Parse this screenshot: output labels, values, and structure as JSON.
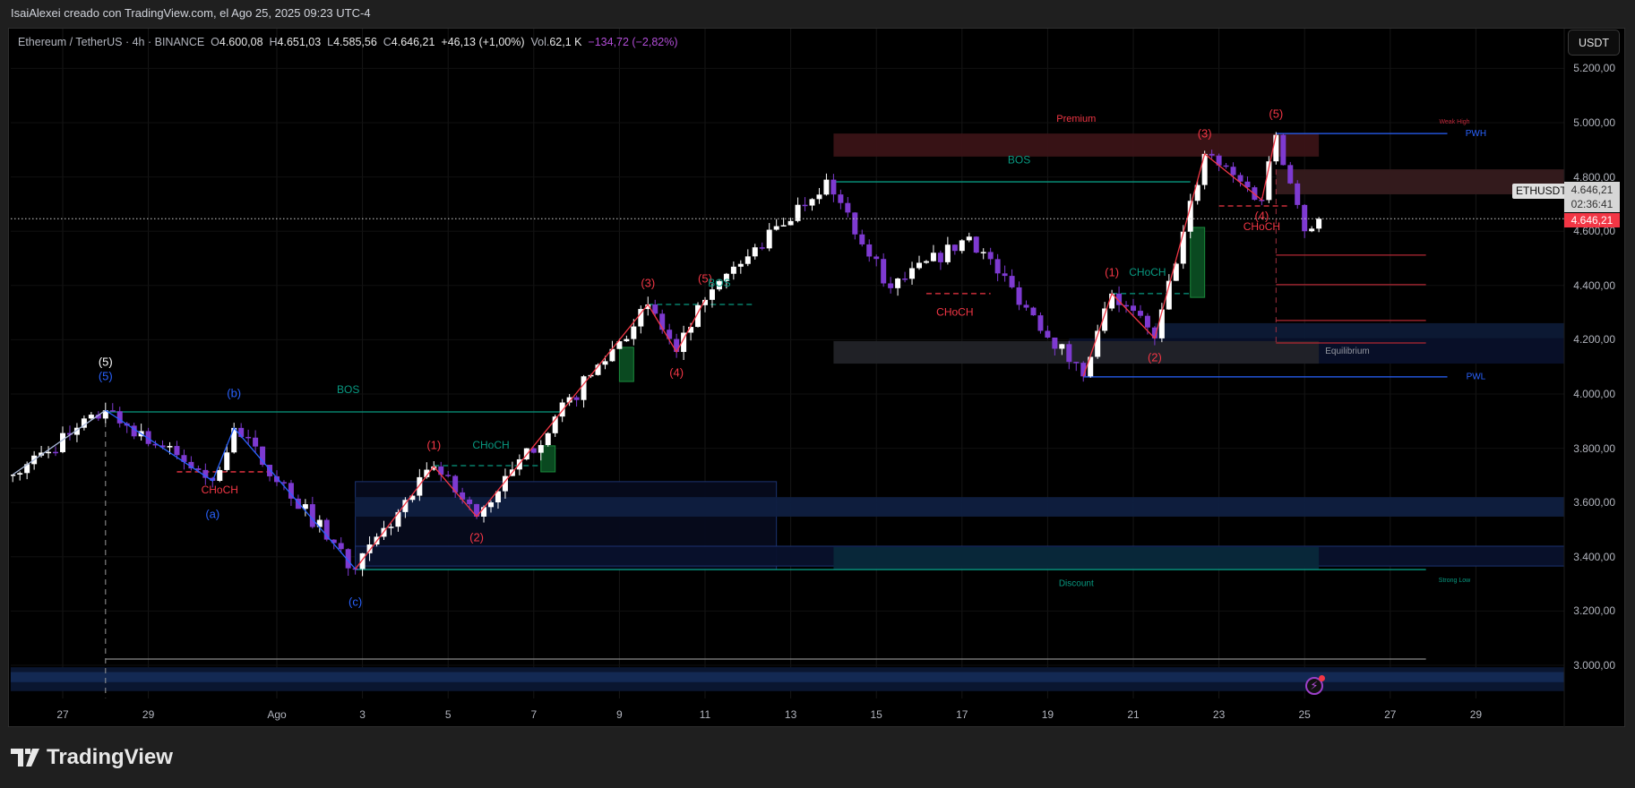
{
  "header": {
    "attribution": "IsaiAlexei creado con TradingView.com, el Ago 25, 2025 09:23 UTC-4"
  },
  "legend": {
    "symbol": "Ethereum / TetherUS · 4h · BINANCE",
    "open_label": "O",
    "open": "4.600,08",
    "high_label": "H",
    "high": "4.651,03",
    "low_label": "L",
    "low": "4.585,56",
    "close_label": "C",
    "close": "4.646,21",
    "change": "+46,13 (+1,00%)",
    "volume_label": "Vol.",
    "volume": "62,1 K",
    "indicator_value": "−134,72 (−2,82%)"
  },
  "currency_button": "USDT",
  "price_axis": [
    "5.200,00",
    "5.000,00",
    "4.800,00",
    "4.600,00",
    "4.400,00",
    "4.200,00",
    "4.000,00",
    "3.800,00",
    "3.600,00",
    "3.400,00",
    "3.200,00",
    "3.000,00"
  ],
  "date_axis": [
    "27",
    "29",
    "Ago",
    "3",
    "5",
    "7",
    "9",
    "11",
    "13",
    "15",
    "17",
    "19",
    "21",
    "23",
    "25",
    "27",
    "29"
  ],
  "last_price": {
    "symbol": "ETHUSDT",
    "price": "4.646,21",
    "countdown": "02:36:41",
    "price_red": "4.646,21"
  },
  "footer": {
    "logo_text": "TradingView"
  },
  "colors": {
    "up": "#ffffff",
    "down": "#7e3ad1",
    "bullish_structure": "#089981",
    "bearish_structure": "#f23645",
    "wave": "#2962ff",
    "last_price": "#f23645"
  },
  "icons": {
    "alert": "lightning-icon",
    "logo": "tradingview-logo-icon"
  },
  "chart_data": {
    "type": "candlestick",
    "symbol": "ETHUSDT",
    "interval": "4h",
    "ylim": [
      2880,
      5260
    ],
    "y_ticks": [
      5200,
      5000,
      4800,
      4600,
      4400,
      4200,
      4000,
      3800,
      3600,
      3400,
      3200,
      3000
    ],
    "x_ticks": [
      "2025-07-27",
      "2025-07-29",
      "2025-08-01",
      "2025-08-03",
      "2025-08-05",
      "2025-08-07",
      "2025-08-09",
      "2025-08-11",
      "2025-08-13",
      "2025-08-15",
      "2025-08-17",
      "2025-08-19",
      "2025-08-21",
      "2025-08-23",
      "2025-08-25",
      "2025-08-27",
      "2025-08-29"
    ],
    "grid": true,
    "last_price": 4646.21,
    "swing_points": [
      [
        "2025-07-25T20:00",
        3703
      ],
      [
        "2025-07-28T00:00",
        3940
      ],
      [
        "2025-07-30T12:00",
        3680
      ],
      [
        "2025-07-31T00:00",
        3875
      ],
      [
        "2025-08-02T20:00",
        3355
      ],
      [
        "2025-08-04T16:00",
        3733
      ],
      [
        "2025-08-05T16:00",
        3548
      ],
      [
        "2025-08-09T16:00",
        4330
      ],
      [
        "2025-08-10T08:00",
        4155
      ],
      [
        "2025-08-11T00:00",
        4347
      ],
      [
        "2025-08-13T20:00",
        4790
      ],
      [
        "2025-08-15T08:00",
        4390
      ],
      [
        "2025-08-17T04:00",
        4580
      ],
      [
        "2025-08-19T20:00",
        4065
      ],
      [
        "2025-08-20T12:00",
        4370
      ],
      [
        "2025-08-21T12:00",
        4205
      ],
      [
        "2025-08-22T16:00",
        4885
      ],
      [
        "2025-08-24T00:00",
        4715
      ],
      [
        "2025-08-24T08:00",
        4955
      ],
      [
        "2025-08-25T00:00",
        4600
      ],
      [
        "2025-08-25T08:00",
        4646
      ]
    ],
    "zigzags": [
      {
        "color": "#a9b8d8",
        "points": [
          [
            "2025-07-25T20:00",
            3703
          ],
          [
            "2025-07-28T00:00",
            3940
          ]
        ]
      },
      {
        "color": "#2962ff",
        "points": [
          [
            "2025-07-28T00:00",
            3940
          ],
          [
            "2025-07-30T12:00",
            3680
          ],
          [
            "2025-07-31T00:00",
            3875
          ],
          [
            "2025-08-02T20:00",
            3355
          ]
        ]
      },
      {
        "color": "#f23645",
        "points": [
          [
            "2025-08-02T20:00",
            3355
          ],
          [
            "2025-08-04T16:00",
            3733
          ],
          [
            "2025-08-05T16:00",
            3548
          ],
          [
            "2025-08-09T16:00",
            4330
          ],
          [
            "2025-08-10T08:00",
            4155
          ],
          [
            "2025-08-11T00:00",
            4347
          ]
        ]
      },
      {
        "color": "#f23645",
        "points": [
          [
            "2025-08-19T20:00",
            4065
          ],
          [
            "2025-08-20T12:00",
            4370
          ],
          [
            "2025-08-21T12:00",
            4205
          ],
          [
            "2025-08-22T16:00",
            4885
          ],
          [
            "2025-08-24T00:00",
            4715
          ],
          [
            "2025-08-24T08:00",
            4955
          ]
        ]
      }
    ],
    "zones": [
      {
        "name": "premium-zone",
        "from": "2025-08-14T00:00",
        "to": "2025-08-25T08:00",
        "top": 4960,
        "bottom": 4875,
        "fill": "#3a1316"
      },
      {
        "name": "supply-zone",
        "from": "2025-08-24T08:00",
        "to": "end",
        "top": 4828,
        "bottom": 4736,
        "fill": "#361b1d"
      },
      {
        "name": "equilibrium-navy-zone",
        "from": "2025-08-19T12:00",
        "to": "end",
        "top": 4205,
        "bottom": 4112,
        "fill": "#08102a"
      },
      {
        "name": "demand-zone-upper",
        "from": "2025-08-21T12:00",
        "to": "end",
        "top": 4261,
        "bottom": 4205,
        "fill": "#0d1a36"
      },
      {
        "name": "equilibrium-zone",
        "from": "2025-08-14T00:00",
        "to": "2025-08-25T08:00",
        "top": 4195,
        "bottom": 4112,
        "fill": "#222328"
      },
      {
        "name": "demand-box",
        "from": "2025-08-02T20:00",
        "to": "2025-08-12T16:00",
        "top": 3677,
        "bottom": 3353,
        "fill": "#060b1c",
        "stroke": "#1c3370"
      },
      {
        "name": "demand-band-1",
        "from": "2025-08-02T20:00",
        "to": "end",
        "top": 3620,
        "bottom": 3548,
        "fill": "#0f1f40"
      },
      {
        "name": "demand-band-2",
        "from": "2025-08-02T20:00",
        "to": "end",
        "top": 3439,
        "bottom": 3366,
        "fill": "#08112c",
        "stroke": "#1c3370"
      },
      {
        "name": "discount-zone",
        "from": "2025-08-14T00:00",
        "to": "2025-08-25T08:00",
        "top": 3436,
        "bottom": 3353,
        "fill": "#08293a"
      },
      {
        "name": "lower-band",
        "from": "start",
        "to": "end",
        "top": 2993,
        "bottom": 2905,
        "fill": "#0b1733"
      },
      {
        "name": "lower-band-core",
        "from": "start",
        "to": "end",
        "top": 2975,
        "bottom": 2938,
        "fill": "#142a55"
      },
      {
        "name": "order-block-1",
        "from": "2025-08-07T04:00",
        "to": "2025-08-07T12:00",
        "top": 3809,
        "bottom": 3713,
        "fill": "#0b4d22",
        "stroke": "#1a8a3c"
      },
      {
        "name": "order-block-2",
        "from": "2025-08-09T00:00",
        "to": "2025-08-09T08:00",
        "top": 4172,
        "bottom": 4046,
        "fill": "#0b4d22",
        "stroke": "#1a8a3c"
      },
      {
        "name": "order-block-3",
        "from": "2025-08-22T08:00",
        "to": "2025-08-22T16:00",
        "top": 4614,
        "bottom": 4356,
        "fill": "#0b4d22",
        "stroke": "#1a8a3c"
      }
    ],
    "lines": [
      {
        "name": "bos-line-1",
        "price": 3934,
        "from": "2025-07-28T00:00",
        "to": "2025-08-07T16:00",
        "color": "#089981",
        "dash": false
      },
      {
        "name": "bos-line-2",
        "price": 4782,
        "from": "2025-08-14T00:00",
        "to": "2025-08-22T08:00",
        "color": "#089981",
        "dash": false
      },
      {
        "name": "strong-low-line",
        "price": 3353,
        "from": "2025-08-02T20:00",
        "to": "2025-08-27T20:00",
        "color": "#089981",
        "dash": false
      },
      {
        "name": "pwh-line",
        "price": 4960,
        "from": "2025-08-24T08:00",
        "to": "2025-08-28T08:00",
        "color": "#2962ff",
        "dash": false
      },
      {
        "name": "pwl-line",
        "price": 4063,
        "from": "2025-08-19T20:00",
        "to": "2025-08-28T08:00",
        "color": "#2962ff",
        "dash": false
      },
      {
        "name": "range-low-line",
        "price": 3023,
        "from": "2025-07-28T00:00",
        "to": "2025-08-27T20:00",
        "color": "#8a8a8a",
        "dash": false
      },
      {
        "name": "fib-line-1",
        "price": 4512,
        "from": "2025-08-24T08:00",
        "to": "2025-08-27T20:00",
        "color": "#b22833",
        "dash": false
      },
      {
        "name": "fib-line-2",
        "price": 4403,
        "from": "2025-08-24T08:00",
        "to": "2025-08-27T20:00",
        "color": "#b22833",
        "dash": false
      },
      {
        "name": "fib-line-3",
        "price": 4271,
        "from": "2025-08-24T08:00",
        "to": "2025-08-27T20:00",
        "color": "#b22833",
        "dash": false
      },
      {
        "name": "fib-line-4",
        "price": 4188,
        "from": "2025-08-24T08:00",
        "to": "2025-08-27T20:00",
        "color": "#b22833",
        "dash": false
      },
      {
        "name": "choch-line-1",
        "price": 3713,
        "from": "2025-07-29T16:00",
        "to": "2025-07-31T20:00",
        "color": "#f23645",
        "dash": true
      },
      {
        "name": "choch-line-2",
        "price": 3736,
        "from": "2025-08-04T16:00",
        "to": "2025-08-07T04:00",
        "color": "#089981",
        "dash": true
      },
      {
        "name": "bos-line-3",
        "price": 4330,
        "from": "2025-08-09T16:00",
        "to": "2025-08-12T04:00",
        "color": "#089981",
        "dash": true
      },
      {
        "name": "choch-line-3",
        "price": 4370,
        "from": "2025-08-16T04:00",
        "to": "2025-08-17T16:00",
        "color": "#f23645",
        "dash": true
      },
      {
        "name": "choch-line-4",
        "price": 4370,
        "from": "2025-08-20T12:00",
        "to": "2025-08-22T08:00",
        "color": "#089981",
        "dash": true
      },
      {
        "name": "choch-line-5",
        "price": 4693,
        "from": "2025-08-23T00:00",
        "to": "2025-08-24T16:00",
        "color": "#f23645",
        "dash": true
      }
    ],
    "vlines": [
      {
        "name": "wave-end-vline",
        "date": "2025-07-28T00:00",
        "from": 3934,
        "to": 2880,
        "color": "#9a9a9a"
      },
      {
        "name": "fib-anchor-vline",
        "date": "2025-08-24T08:00",
        "from": 4828,
        "to": 4188,
        "color": "#a03040"
      }
    ],
    "labels": [
      {
        "text": "(5)",
        "date": "2025-07-28T00:00",
        "price": 4115,
        "color": "#ffffff",
        "size": 13
      },
      {
        "text": "(5)",
        "date": "2025-07-28T00:00",
        "price": 4063,
        "color": "#2962ff",
        "size": 13
      },
      {
        "text": "(b)",
        "date": "2025-07-31T00:00",
        "price": 4000,
        "color": "#2962ff",
        "size": 13
      },
      {
        "text": "BOS",
        "date": "2025-08-02T16:00",
        "price": 4013,
        "color": "#089981",
        "size": 12
      },
      {
        "text": "CHoCH",
        "date": "2025-07-30T16:00",
        "price": 3644,
        "color": "#f23645",
        "size": 12
      },
      {
        "text": "(a)",
        "date": "2025-07-30T12:00",
        "price": 3555,
        "color": "#2962ff",
        "size": 13
      },
      {
        "text": "(c)",
        "date": "2025-08-02T20:00",
        "price": 3231,
        "color": "#2962ff",
        "size": 13
      },
      {
        "text": "(1)",
        "date": "2025-08-04T16:00",
        "price": 3809,
        "color": "#f23645",
        "size": 13
      },
      {
        "text": "CHoCH",
        "date": "2025-08-06T00:00",
        "price": 3809,
        "color": "#089981",
        "size": 12
      },
      {
        "text": "(2)",
        "date": "2025-08-05T16:00",
        "price": 3469,
        "color": "#f23645",
        "size": 13
      },
      {
        "text": "(3)",
        "date": "2025-08-09T16:00",
        "price": 4406,
        "color": "#f23645",
        "size": 13
      },
      {
        "text": "(4)",
        "date": "2025-08-10T08:00",
        "price": 4076,
        "color": "#f23645",
        "size": 13
      },
      {
        "text": "(5)",
        "date": "2025-08-11T00:00",
        "price": 4422,
        "color": "#f23645",
        "size": 13
      },
      {
        "text": "BOS",
        "date": "2025-08-11T08:00",
        "price": 4406,
        "color": "#089981",
        "size": 12
      },
      {
        "text": "Premium",
        "date": "2025-08-19T16:00",
        "price": 5013,
        "color": "#f23645",
        "size": 11
      },
      {
        "text": "BOS",
        "date": "2025-08-18T08:00",
        "price": 4861,
        "color": "#089981",
        "size": 12
      },
      {
        "text": "CHoCH",
        "date": "2025-08-16T20:00",
        "price": 4300,
        "color": "#f23645",
        "size": 12
      },
      {
        "text": "(1)",
        "date": "2025-08-20T12:00",
        "price": 4446,
        "color": "#f23645",
        "size": 13
      },
      {
        "text": "CHoCH",
        "date": "2025-08-21T08:00",
        "price": 4446,
        "color": "#089981",
        "size": 12
      },
      {
        "text": "(2)",
        "date": "2025-08-21T12:00",
        "price": 4132,
        "color": "#f23645",
        "size": 13
      },
      {
        "text": "(3)",
        "date": "2025-08-22T16:00",
        "price": 4957,
        "color": "#f23645",
        "size": 13
      },
      {
        "text": "(4)",
        "date": "2025-08-24T00:00",
        "price": 4653,
        "color": "#f23645",
        "size": 13
      },
      {
        "text": "CHoCH",
        "date": "2025-08-24T00:00",
        "price": 4614,
        "color": "#f23645",
        "size": 12
      },
      {
        "text": "(5)",
        "date": "2025-08-24T08:00",
        "price": 5030,
        "color": "#f23645",
        "size": 13
      },
      {
        "text": "Weak High",
        "date": "2025-08-28T12:00",
        "price": 5003,
        "color": "#c0283a",
        "size": 7
      },
      {
        "text": "PWH",
        "date": "2025-08-29T00:00",
        "price": 4960,
        "color": "#2962ff",
        "size": 10
      },
      {
        "text": "PWL",
        "date": "2025-08-29T00:00",
        "price": 4063,
        "color": "#2962ff",
        "size": 10
      },
      {
        "text": "Equilibrium",
        "date": "2025-08-26T00:00",
        "price": 4158,
        "color": "#9598a1",
        "size": 10
      },
      {
        "text": "Discount",
        "date": "2025-08-19T16:00",
        "price": 3300,
        "color": "#089981",
        "size": 10
      },
      {
        "text": "Strong Low",
        "date": "2025-08-28T12:00",
        "price": 3313,
        "color": "#089981",
        "size": 7
      }
    ]
  }
}
